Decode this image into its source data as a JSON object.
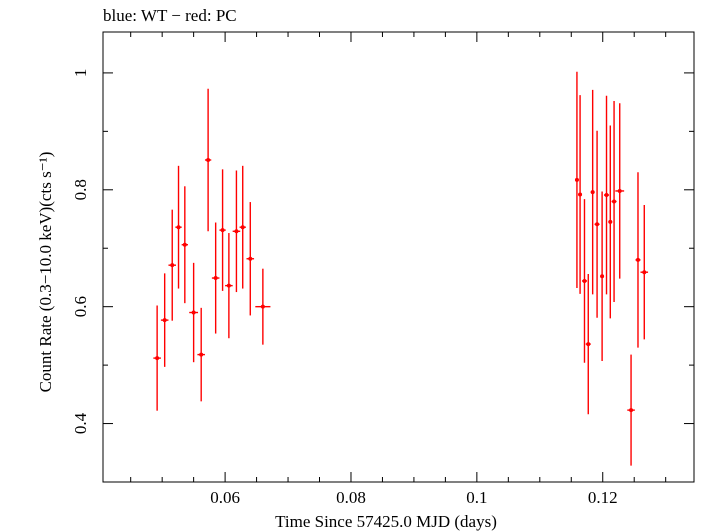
{
  "chart_data": {
    "type": "scatter",
    "title": "blue: WT − red: PC",
    "xlabel": "Time Since 57425.0 MJD (days)",
    "ylabel": "Count Rate (0.3−10.0 keV)(cts s⁻¹)",
    "xlim": [
      0.0406,
      0.1345
    ],
    "ylim": [
      0.3,
      1.07
    ],
    "x_ticks": [
      0.06,
      0.08,
      0.1,
      0.12
    ],
    "x_tick_labels": [
      "0.06",
      "0.08",
      "0.1",
      "0.12"
    ],
    "y_ticks": [
      0.4,
      0.6,
      0.8,
      1.0
    ],
    "y_tick_labels": [
      "0.4",
      "0.6",
      "0.8",
      "1"
    ],
    "grid": false,
    "series": [
      {
        "name": "PC",
        "color": "#ff0000",
        "points": [
          {
            "x": 0.0492,
            "xerr": 0.0006,
            "y": 0.512,
            "yerr": 0.09
          },
          {
            "x": 0.0504,
            "xerr": 0.0006,
            "y": 0.577,
            "yerr": 0.08
          },
          {
            "x": 0.0516,
            "xerr": 0.0006,
            "y": 0.671,
            "yerr": 0.095
          },
          {
            "x": 0.0526,
            "xerr": 0.0005,
            "y": 0.736,
            "yerr": 0.105
          },
          {
            "x": 0.0536,
            "xerr": 0.0005,
            "y": 0.706,
            "yerr": 0.1
          },
          {
            "x": 0.055,
            "xerr": 0.0007,
            "y": 0.59,
            "yerr": 0.085
          },
          {
            "x": 0.0562,
            "xerr": 0.0006,
            "y": 0.518,
            "yerr": 0.08
          },
          {
            "x": 0.0573,
            "xerr": 0.0005,
            "y": 0.851,
            "yerr": 0.122
          },
          {
            "x": 0.0585,
            "xerr": 0.0006,
            "y": 0.649,
            "yerr": 0.095
          },
          {
            "x": 0.0596,
            "xerr": 0.0005,
            "y": 0.731,
            "yerr": 0.104
          },
          {
            "x": 0.0606,
            "xerr": 0.0006,
            "y": 0.636,
            "yerr": 0.09
          },
          {
            "x": 0.0618,
            "xerr": 0.0006,
            "y": 0.729,
            "yerr": 0.104
          },
          {
            "x": 0.0628,
            "xerr": 0.0005,
            "y": 0.736,
            "yerr": 0.105
          },
          {
            "x": 0.064,
            "xerr": 0.0006,
            "y": 0.682,
            "yerr": 0.097
          },
          {
            "x": 0.066,
            "xerr": 0.0012,
            "y": 0.6,
            "yerr": 0.065
          },
          {
            "x": 0.1159,
            "xerr": 0.0003,
            "y": 0.817,
            "yerr": 0.185
          },
          {
            "x": 0.1164,
            "xerr": 0.0003,
            "y": 0.792,
            "yerr": 0.17
          },
          {
            "x": 0.1171,
            "xerr": 0.0004,
            "y": 0.644,
            "yerr": 0.14
          },
          {
            "x": 0.1177,
            "xerr": 0.0004,
            "y": 0.536,
            "yerr": 0.12
          },
          {
            "x": 0.1184,
            "xerr": 0.0003,
            "y": 0.796,
            "yerr": 0.175
          },
          {
            "x": 0.1191,
            "xerr": 0.0004,
            "y": 0.741,
            "yerr": 0.16
          },
          {
            "x": 0.1199,
            "xerr": 0.0003,
            "y": 0.652,
            "yerr": 0.145
          },
          {
            "x": 0.1206,
            "xerr": 0.0004,
            "y": 0.791,
            "yerr": 0.17
          },
          {
            "x": 0.1212,
            "xerr": 0.0003,
            "y": 0.745,
            "yerr": 0.165
          },
          {
            "x": 0.1218,
            "xerr": 0.0004,
            "y": 0.78,
            "yerr": 0.172
          },
          {
            "x": 0.1227,
            "xerr": 0.0007,
            "y": 0.798,
            "yerr": 0.15
          },
          {
            "x": 0.1245,
            "xerr": 0.0006,
            "y": 0.423,
            "yerr": 0.095
          },
          {
            "x": 0.1256,
            "xerr": 0.0004,
            "y": 0.68,
            "yerr": 0.15
          },
          {
            "x": 0.1266,
            "xerr": 0.0006,
            "y": 0.659,
            "yerr": 0.115
          }
        ]
      }
    ]
  }
}
